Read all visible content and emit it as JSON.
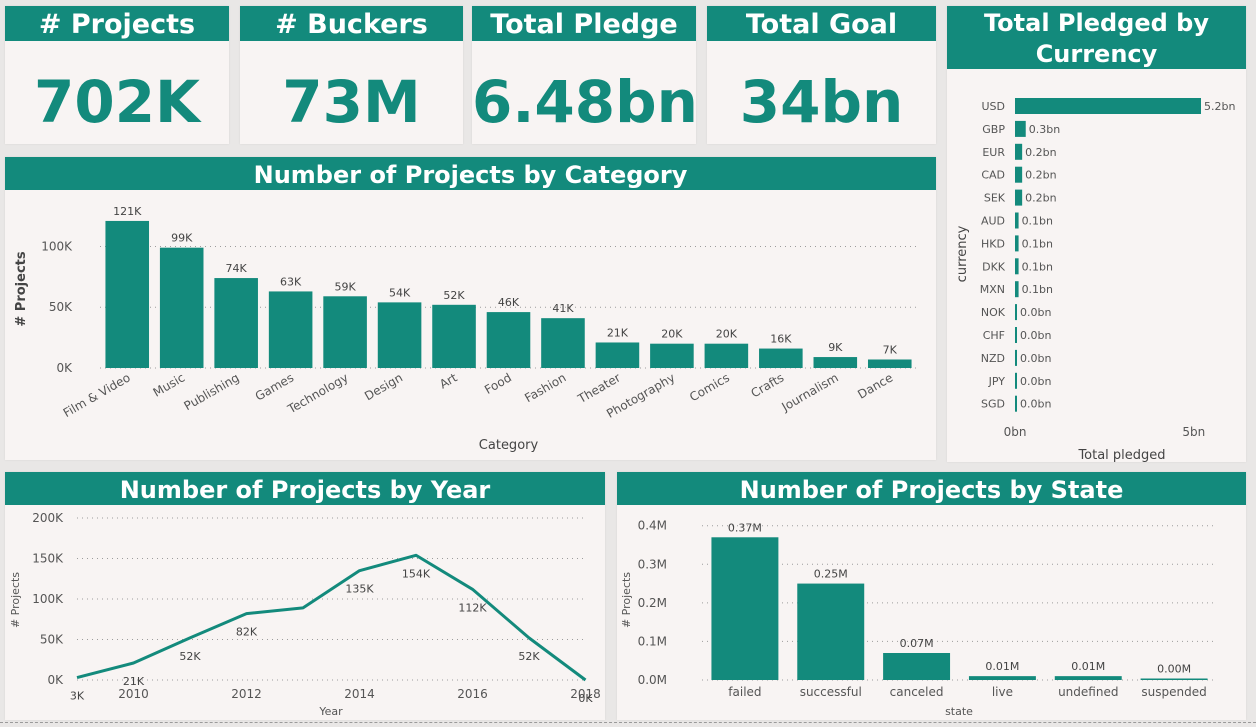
{
  "kpis": [
    {
      "title": "# Projects",
      "value": "702K"
    },
    {
      "title": "# Buckers",
      "value": "73M"
    },
    {
      "title": "Total Pledge",
      "value": "6.48bn"
    },
    {
      "title": "Total Goal",
      "value": "34bn"
    }
  ],
  "accent_color": "#138a7c",
  "chart_data": [
    {
      "id": "category",
      "type": "bar",
      "title": "Number of Projects by Category",
      "xlabel": "Category",
      "ylabel": "# Projects",
      "ylim": [
        0,
        130000
      ],
      "yticks": [
        0,
        50000,
        100000
      ],
      "ytick_labels": [
        "0K",
        "50K",
        "100K"
      ],
      "categories": [
        "Film & Video",
        "Music",
        "Publishing",
        "Games",
        "Technology",
        "Design",
        "Art",
        "Food",
        "Fashion",
        "Theater",
        "Photography",
        "Comics",
        "Crafts",
        "Journalism",
        "Dance"
      ],
      "values": [
        121000,
        99000,
        74000,
        63000,
        59000,
        54000,
        52000,
        46000,
        41000,
        21000,
        20000,
        20000,
        16000,
        9000,
        7000
      ],
      "labels": [
        "121K",
        "99K",
        "74K",
        "63K",
        "59K",
        "54K",
        "52K",
        "46K",
        "41K",
        "21K",
        "20K",
        "20K",
        "16K",
        "9K",
        "7K"
      ]
    },
    {
      "id": "currency",
      "type": "bar",
      "orientation": "horizontal",
      "title": "Total Pledged by Currency",
      "xlabel": "Total pledged",
      "ylabel": "currency",
      "xlim": [
        0,
        5.2
      ],
      "xticks": [
        0,
        5
      ],
      "xtick_labels": [
        "0bn",
        "5bn"
      ],
      "categories": [
        "USD",
        "GBP",
        "EUR",
        "CAD",
        "SEK",
        "AUD",
        "HKD",
        "DKK",
        "MXN",
        "NOK",
        "CHF",
        "NZD",
        "JPY",
        "SGD"
      ],
      "values": [
        5.2,
        0.3,
        0.2,
        0.2,
        0.2,
        0.1,
        0.1,
        0.1,
        0.1,
        0.0,
        0.0,
        0.0,
        0.0,
        0.0
      ],
      "labels": [
        "5.2bn",
        "0.3bn",
        "0.2bn",
        "0.2bn",
        "0.2bn",
        "0.1bn",
        "0.1bn",
        "0.1bn",
        "0.1bn",
        "0.0bn",
        "0.0bn",
        "0.0bn",
        "0.0bn",
        "0.0bn"
      ]
    },
    {
      "id": "year",
      "type": "line",
      "title": "Number of Projects by Year",
      "xlabel": "Year",
      "ylabel": "# Projects",
      "ylim": [
        0,
        200000
      ],
      "yticks": [
        0,
        50000,
        100000,
        150000,
        200000
      ],
      "ytick_labels": [
        "0K",
        "50K",
        "100K",
        "150K",
        "200K"
      ],
      "xlim": [
        2009,
        2018
      ],
      "xticks": [
        2010,
        2012,
        2014,
        2016,
        2018
      ],
      "x": [
        2009,
        2010,
        2011,
        2012,
        2013,
        2014,
        2015,
        2016,
        2017,
        2018
      ],
      "values": [
        3000,
        21000,
        52000,
        82000,
        89000,
        135000,
        154000,
        112000,
        52000,
        0
      ],
      "labels": [
        "3K",
        "21K",
        "52K",
        "82K",
        "",
        "135K",
        "154K",
        "112K",
        "52K",
        "0K"
      ]
    },
    {
      "id": "state",
      "type": "bar",
      "title": "Number of Projects by State",
      "xlabel": "state",
      "ylabel": "# Projects",
      "ylim": [
        0,
        0.42
      ],
      "yticks": [
        0,
        0.1,
        0.2,
        0.3,
        0.4
      ],
      "ytick_labels": [
        "0.0M",
        "0.1M",
        "0.2M",
        "0.3M",
        "0.4M"
      ],
      "categories": [
        "failed",
        "successful",
        "canceled",
        "live",
        "undefined",
        "suspended"
      ],
      "values": [
        0.37,
        0.25,
        0.07,
        0.01,
        0.01,
        0.0
      ],
      "labels": [
        "0.37M",
        "0.25M",
        "0.07M",
        "0.01M",
        "0.01M",
        "0.00M"
      ]
    }
  ]
}
